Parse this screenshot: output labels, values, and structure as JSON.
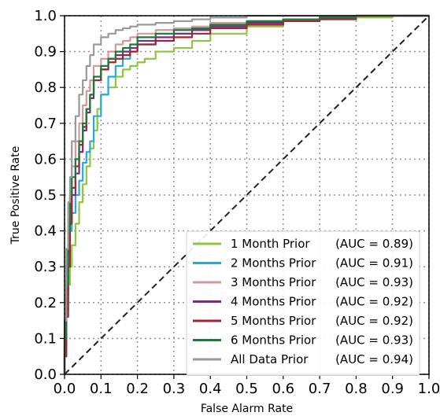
{
  "chart_data": {
    "type": "line",
    "title": "",
    "xlabel": "False Alarm Rate",
    "ylabel": "True Positive Rate",
    "xlim": [
      0.0,
      1.0
    ],
    "ylim": [
      0.0,
      1.0
    ],
    "x_ticks": [
      "0.0",
      "0.1",
      "0.2",
      "0.3",
      "0.4",
      "0.5",
      "0.6",
      "0.7",
      "0.8",
      "0.9",
      "1.0"
    ],
    "y_ticks": [
      "0.0",
      "0.1",
      "0.2",
      "0.3",
      "0.4",
      "0.5",
      "0.6",
      "0.7",
      "0.8",
      "0.9",
      "1.0"
    ],
    "grid": true,
    "legend_position": "bottom-right",
    "series": [
      {
        "name": "1 Month Prior",
        "auc": "(AUC = 0.89)",
        "color": "#8dc63f",
        "x": [
          0.0,
          0.005,
          0.01,
          0.015,
          0.02,
          0.03,
          0.04,
          0.05,
          0.06,
          0.07,
          0.08,
          0.09,
          0.1,
          0.12,
          0.14,
          0.16,
          0.18,
          0.2,
          0.22,
          0.25,
          0.3,
          0.35,
          0.4,
          0.5,
          0.6,
          0.7,
          0.8,
          0.9,
          1.0
        ],
        "y": [
          0.0,
          0.05,
          0.18,
          0.25,
          0.3,
          0.36,
          0.42,
          0.48,
          0.53,
          0.58,
          0.63,
          0.68,
          0.74,
          0.78,
          0.8,
          0.83,
          0.85,
          0.86,
          0.87,
          0.88,
          0.9,
          0.91,
          0.93,
          0.95,
          0.97,
          0.985,
          0.99,
          0.995,
          1.0
        ]
      },
      {
        "name": "2 Months Prior",
        "auc": "(AUC = 0.91)",
        "color": "#29a8e0",
        "x": [
          0.0,
          0.005,
          0.01,
          0.015,
          0.02,
          0.03,
          0.04,
          0.05,
          0.06,
          0.07,
          0.08,
          0.1,
          0.12,
          0.14,
          0.16,
          0.18,
          0.2,
          0.25,
          0.3,
          0.35,
          0.4,
          0.5,
          0.6,
          0.7,
          0.8,
          0.9,
          1.0
        ],
        "y": [
          0.0,
          0.1,
          0.26,
          0.36,
          0.4,
          0.45,
          0.5,
          0.54,
          0.59,
          0.62,
          0.65,
          0.72,
          0.78,
          0.83,
          0.86,
          0.88,
          0.9,
          0.92,
          0.93,
          0.95,
          0.96,
          0.97,
          0.98,
          0.99,
          0.995,
          1.0,
          1.0
        ]
      },
      {
        "name": "3 Months Prior",
        "auc": "(AUC = 0.93)",
        "color": "#d4989c",
        "x": [
          0.0,
          0.005,
          0.01,
          0.015,
          0.02,
          0.03,
          0.04,
          0.05,
          0.06,
          0.07,
          0.08,
          0.1,
          0.12,
          0.14,
          0.16,
          0.18,
          0.2,
          0.25,
          0.3,
          0.35,
          0.4,
          0.5,
          0.6,
          0.7,
          0.8,
          0.9,
          1.0
        ],
        "y": [
          0.0,
          0.12,
          0.3,
          0.42,
          0.5,
          0.58,
          0.65,
          0.7,
          0.75,
          0.79,
          0.82,
          0.86,
          0.88,
          0.9,
          0.92,
          0.93,
          0.94,
          0.95,
          0.96,
          0.965,
          0.97,
          0.98,
          0.985,
          0.99,
          0.995,
          1.0,
          1.0
        ]
      },
      {
        "name": "4 Months Prior",
        "auc": "(AUC = 0.92)",
        "color": "#7b2a82",
        "x": [
          0.0,
          0.005,
          0.01,
          0.015,
          0.02,
          0.03,
          0.04,
          0.05,
          0.06,
          0.07,
          0.08,
          0.1,
          0.12,
          0.14,
          0.16,
          0.18,
          0.2,
          0.25,
          0.3,
          0.35,
          0.4,
          0.5,
          0.6,
          0.7,
          0.8,
          0.9,
          1.0
        ],
        "y": [
          0.0,
          0.08,
          0.22,
          0.34,
          0.44,
          0.5,
          0.56,
          0.62,
          0.68,
          0.73,
          0.77,
          0.82,
          0.85,
          0.88,
          0.89,
          0.9,
          0.91,
          0.93,
          0.94,
          0.95,
          0.96,
          0.97,
          0.98,
          0.99,
          0.995,
          1.0,
          1.0
        ]
      },
      {
        "name": "5 Months Prior",
        "auc": "(AUC = 0.92)",
        "color": "#a0252f",
        "x": [
          0.0,
          0.005,
          0.01,
          0.015,
          0.02,
          0.03,
          0.04,
          0.05,
          0.06,
          0.07,
          0.08,
          0.1,
          0.12,
          0.14,
          0.16,
          0.18,
          0.2,
          0.25,
          0.3,
          0.35,
          0.4,
          0.5,
          0.6,
          0.7,
          0.8,
          0.9,
          1.0
        ],
        "y": [
          0.0,
          0.05,
          0.16,
          0.3,
          0.42,
          0.52,
          0.58,
          0.64,
          0.69,
          0.74,
          0.78,
          0.82,
          0.85,
          0.87,
          0.88,
          0.89,
          0.9,
          0.92,
          0.93,
          0.94,
          0.95,
          0.965,
          0.975,
          0.985,
          0.99,
          1.0,
          1.0
        ]
      },
      {
        "name": "6 Months Prior",
        "auc": "(AUC = 0.93)",
        "color": "#1a7a3c",
        "x": [
          0.0,
          0.005,
          0.01,
          0.015,
          0.02,
          0.03,
          0.04,
          0.05,
          0.06,
          0.07,
          0.08,
          0.1,
          0.12,
          0.14,
          0.16,
          0.18,
          0.2,
          0.25,
          0.3,
          0.35,
          0.4,
          0.5,
          0.6,
          0.7,
          0.8,
          0.9,
          1.0
        ],
        "y": [
          0.0,
          0.1,
          0.25,
          0.4,
          0.5,
          0.55,
          0.6,
          0.65,
          0.7,
          0.74,
          0.78,
          0.83,
          0.86,
          0.88,
          0.9,
          0.91,
          0.92,
          0.94,
          0.95,
          0.96,
          0.965,
          0.975,
          0.985,
          0.99,
          0.995,
          1.0,
          1.0
        ]
      },
      {
        "name": "All Data Prior",
        "auc": "(AUC = 0.94)",
        "color": "#999999",
        "x": [
          0.0,
          0.005,
          0.01,
          0.015,
          0.02,
          0.03,
          0.04,
          0.05,
          0.06,
          0.07,
          0.08,
          0.1,
          0.12,
          0.14,
          0.16,
          0.18,
          0.2,
          0.25,
          0.3,
          0.35,
          0.4,
          0.5,
          0.6,
          0.7,
          0.8,
          0.9,
          1.0
        ],
        "y": [
          0.0,
          0.15,
          0.35,
          0.48,
          0.55,
          0.65,
          0.72,
          0.78,
          0.82,
          0.86,
          0.89,
          0.92,
          0.94,
          0.95,
          0.96,
          0.965,
          0.97,
          0.975,
          0.98,
          0.985,
          0.99,
          0.995,
          1.0,
          1.0,
          1.0,
          1.0,
          1.0
        ]
      }
    ],
    "reference_line": {
      "style": "dashed",
      "color": "#222222",
      "x": [
        0.0,
        1.0
      ],
      "y": [
        0.0,
        1.0
      ]
    }
  }
}
